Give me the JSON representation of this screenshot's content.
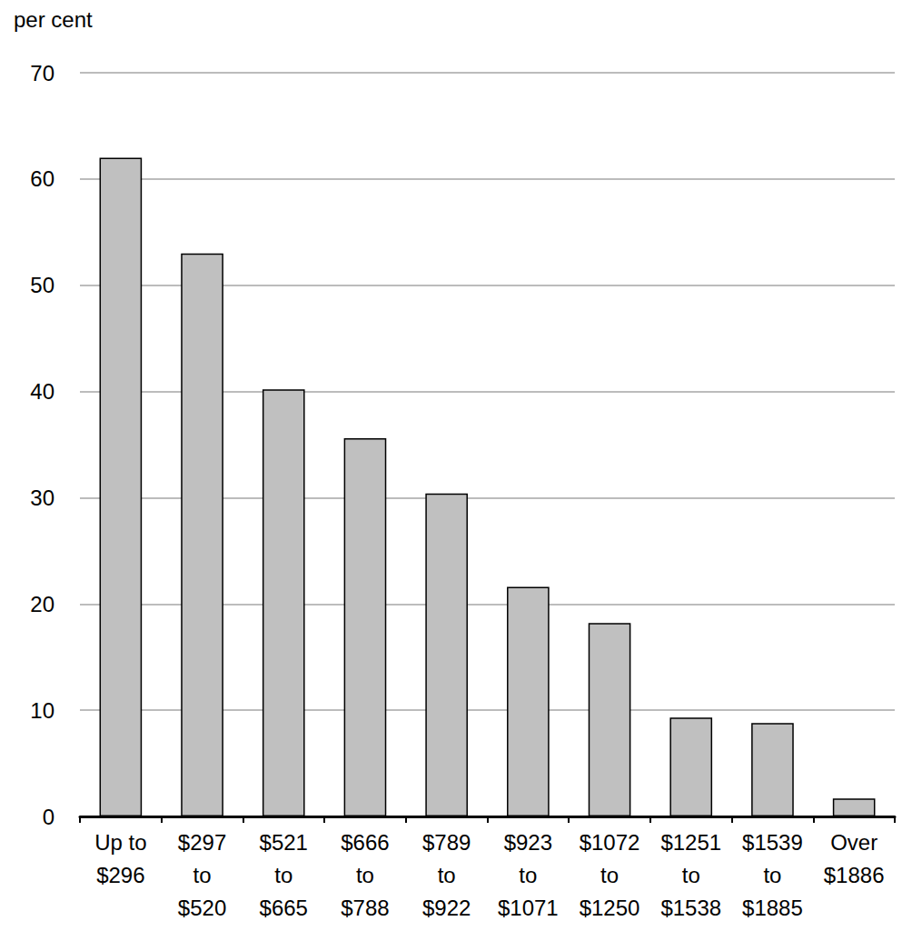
{
  "chart_data": {
    "type": "bar",
    "ylabel": "per cent",
    "categories": [
      "Up to\n$296",
      "$297\nto\n$520",
      "$521\nto\n$665",
      "$666\nto\n$788",
      "$789\nto\n$922",
      "$923\nto\n$1071",
      "$1072\nto\n$1250",
      "$1251\nto\n$1538",
      "$1539\nto\n$1885",
      "Over\n$1886"
    ],
    "values": [
      62,
      53,
      40.2,
      35.6,
      30.4,
      21.6,
      18.2,
      9.3,
      8.8,
      1.7
    ],
    "color": "#c0c0c0",
    "ylim": [
      0,
      70
    ],
    "yticks": [
      0,
      10,
      20,
      30,
      40,
      50,
      60,
      70
    ],
    "grid": true
  }
}
